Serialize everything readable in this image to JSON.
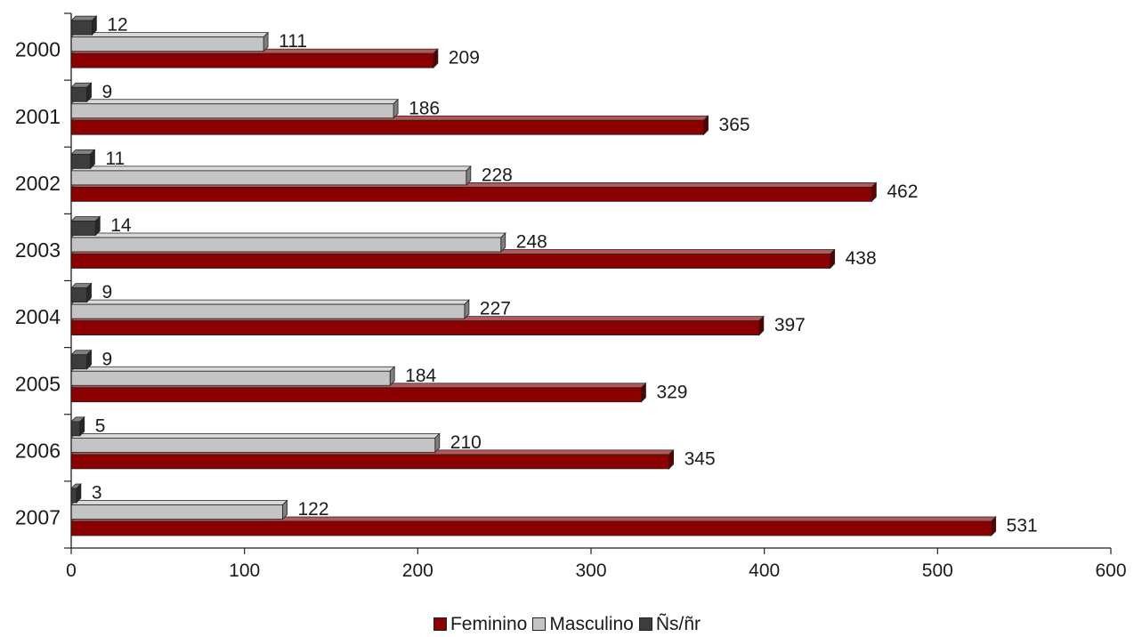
{
  "chart_data": {
    "type": "bar",
    "orientation": "horizontal",
    "categories": [
      "2000",
      "2001",
      "2002",
      "2003",
      "2004",
      "2005",
      "2006",
      "2007"
    ],
    "series": [
      {
        "name": "Feminino",
        "color": "#8b0000",
        "values": [
          209,
          365,
          462,
          438,
          397,
          329,
          345,
          531
        ]
      },
      {
        "name": "Masculino",
        "color": "#c4c4c4",
        "values": [
          111,
          186,
          228,
          248,
          227,
          184,
          210,
          122
        ]
      },
      {
        "name": "Ñs/ñr",
        "color": "#3d3d3d",
        "values": [
          12,
          9,
          11,
          14,
          9,
          9,
          5,
          3
        ]
      }
    ],
    "xlim": [
      0,
      600
    ],
    "xticks": [
      0,
      100,
      200,
      300,
      400,
      500,
      600
    ],
    "data_labels": true,
    "legend_position": "bottom",
    "grid": false,
    "style": "3d"
  }
}
